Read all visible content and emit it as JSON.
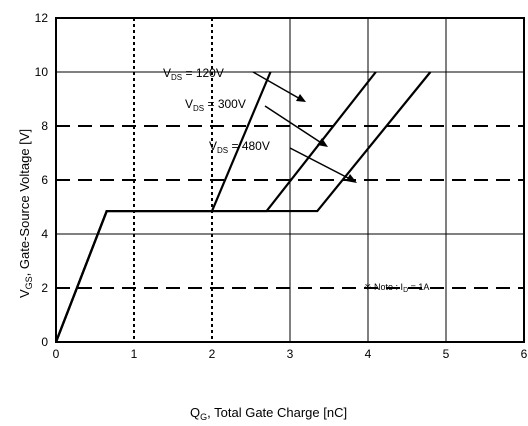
{
  "chart_data": {
    "type": "line",
    "xlabel": {
      "main": "Q",
      "sub": "G",
      "rest": ", Total Gate Charge [nC]"
    },
    "ylabel": {
      "main": "V",
      "sub": "GS",
      "rest": ",  Gate-Source Voltage [V]"
    },
    "xlim": [
      0,
      6
    ],
    "ylim": [
      0,
      12
    ],
    "x_ticks": [
      "0",
      "1",
      "2",
      "3",
      "4",
      "5",
      "6"
    ],
    "y_ticks": [
      "0",
      "2",
      "4",
      "6",
      "8",
      "10",
      "12"
    ],
    "grid": true,
    "series": [
      {
        "name": "VDS = 120V",
        "label": {
          "main": "V",
          "sub": "DS",
          "rest": " = 120V"
        },
        "points": [
          [
            0,
            0
          ],
          [
            0.65,
            4.85
          ],
          [
            2.0,
            4.85
          ],
          [
            2.75,
            10.0
          ]
        ]
      },
      {
        "name": "VDS = 300V",
        "label": {
          "main": "V",
          "sub": "DS",
          "rest": " = 300V"
        },
        "points": [
          [
            0,
            0
          ],
          [
            0.65,
            4.85
          ],
          [
            2.7,
            4.85
          ],
          [
            4.1,
            10.0
          ]
        ]
      },
      {
        "name": "VDS = 480V",
        "label": {
          "main": "V",
          "sub": "DS",
          "rest": " = 480V"
        },
        "points": [
          [
            0,
            0
          ],
          [
            0.65,
            4.85
          ],
          [
            3.35,
            4.85
          ],
          [
            4.8,
            10.0
          ]
        ]
      }
    ],
    "note": {
      "prefix": "※ Note : I",
      "sub": "D",
      "rest": " = 1A"
    }
  }
}
